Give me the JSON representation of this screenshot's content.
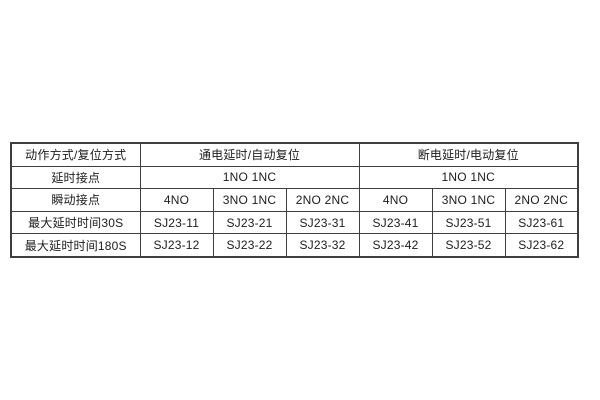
{
  "table": {
    "rows": [
      {
        "label": "动作方式/复位方式",
        "cells": [
          "通电延时/自动复位",
          "断电延时/电动复位"
        ]
      },
      {
        "label": "延时接点",
        "cells": [
          "1NO 1NC",
          "1NO 1NC"
        ]
      },
      {
        "label": "瞬动接点",
        "cells": [
          "4NO",
          "3NO 1NC",
          "2NO 2NC",
          "4NO",
          "3NO 1NC",
          "2NO 2NC"
        ]
      },
      {
        "label": "最大延时时间30S",
        "cells": [
          "SJ23-11",
          "SJ23-21",
          "SJ23-31",
          "SJ23-41",
          "SJ23-51",
          "SJ23-61"
        ]
      },
      {
        "label": "最大延时时间180S",
        "cells": [
          "SJ23-12",
          "SJ23-22",
          "SJ23-32",
          "SJ23-42",
          "SJ23-52",
          "SJ23-62"
        ]
      }
    ]
  },
  "colors": {
    "border": "#3f3f3f",
    "text": "#1c1c1c",
    "background": "#ffffff"
  }
}
